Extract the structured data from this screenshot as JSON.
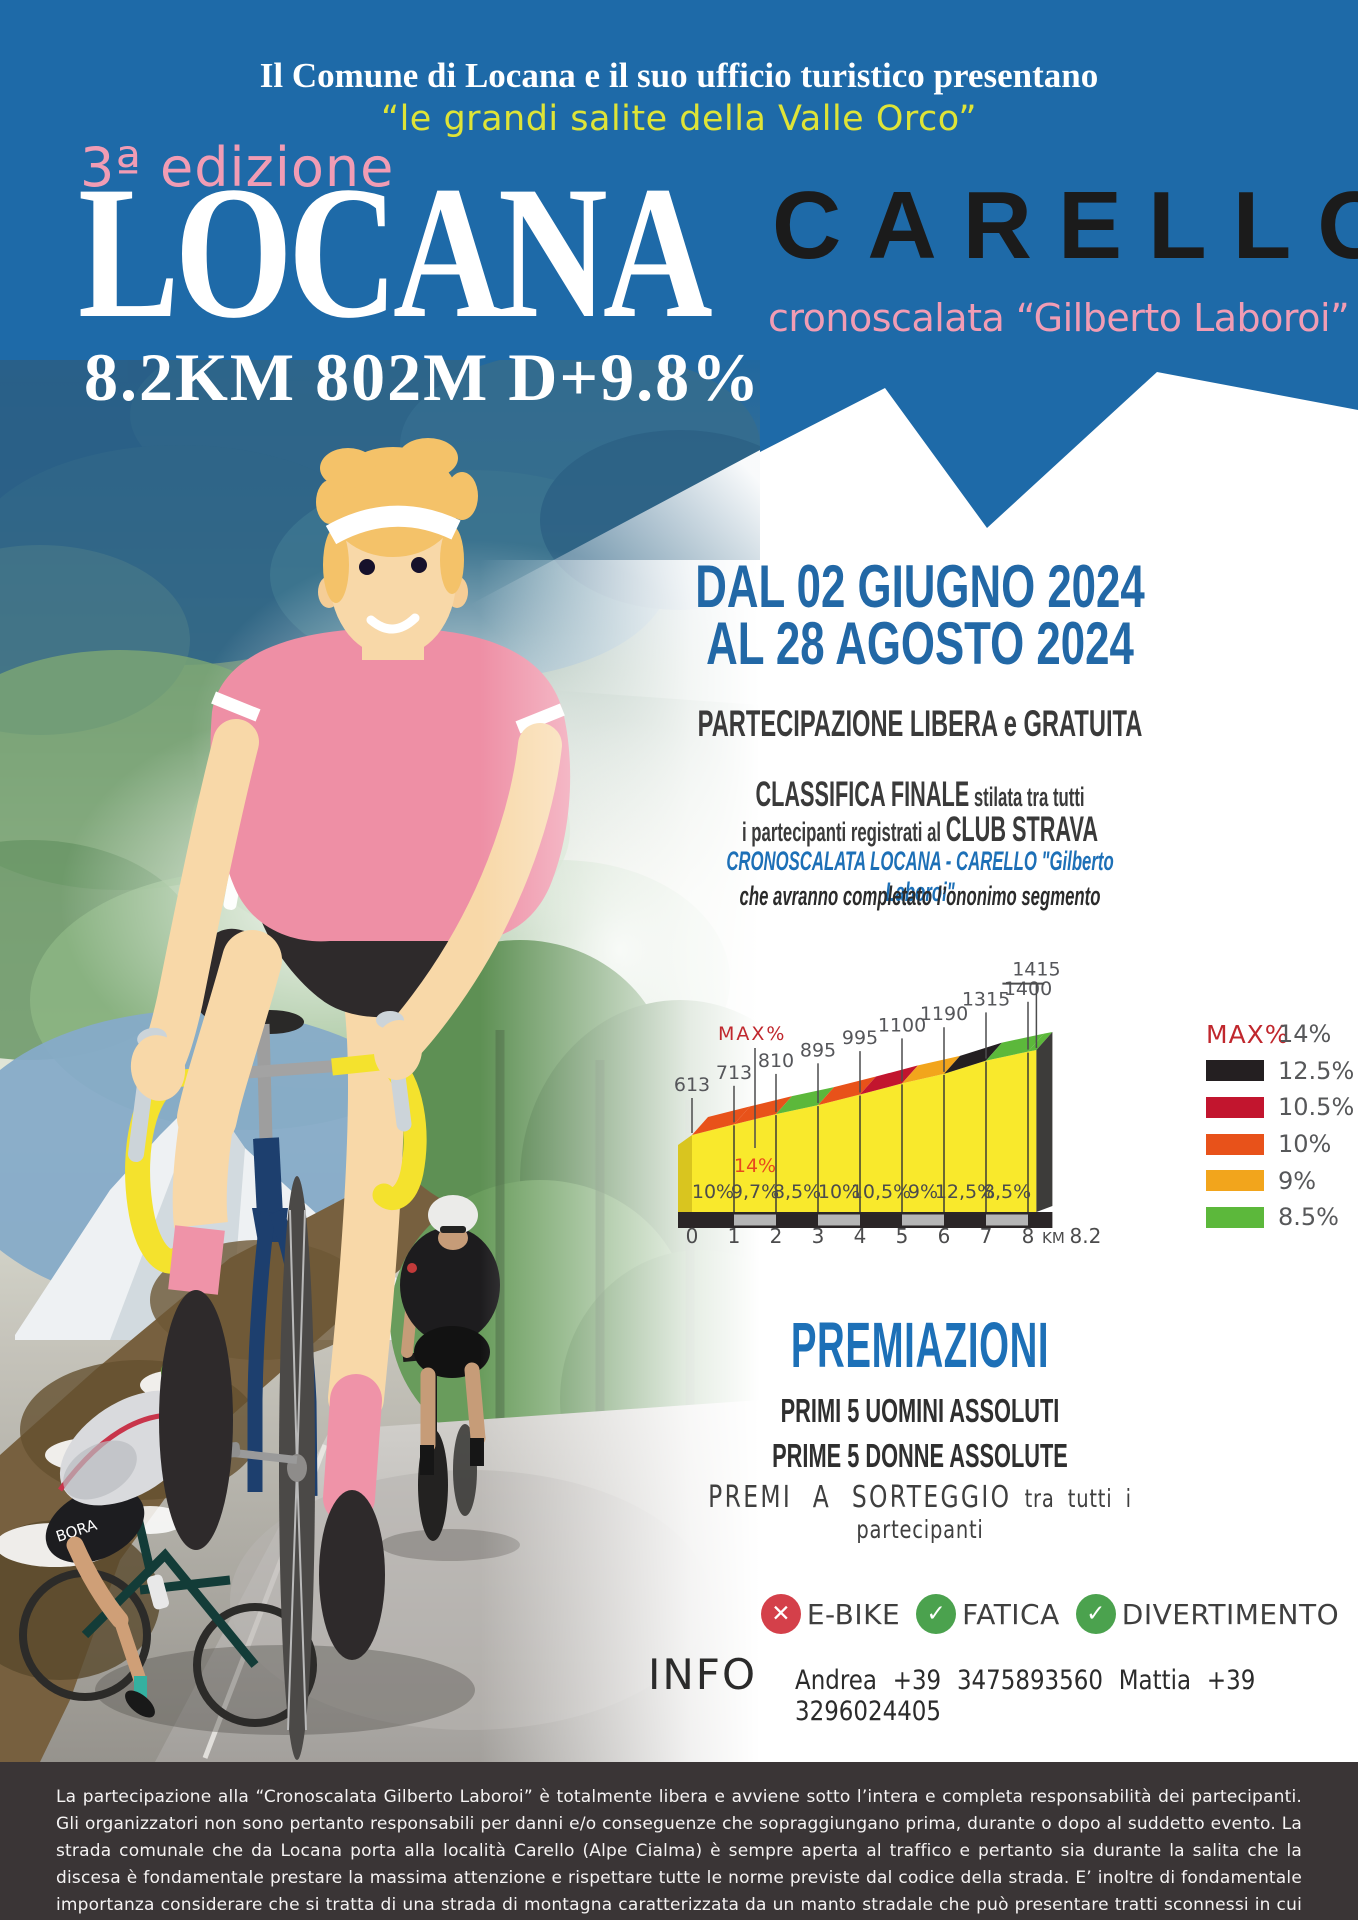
{
  "poster": {
    "colors": {
      "header_blue": "#1e6aa8",
      "accent_yellow": "#dfe437",
      "accent_pink": "#f19cb4",
      "title_black": "#1b1b1b",
      "date_blue": "#2268a6",
      "link_blue": "#1d70b7",
      "badge_red": "#d4404a",
      "badge_green": "#4ba24e",
      "footer_bg": "#3a3536"
    },
    "header": {
      "presenter_line": "Il Comune di Locana e il suo ufficio turistico presentano",
      "series_line": "“le grandi salite della Valle Orco”",
      "edition": "3ª edizione",
      "title_main": "LOCANA",
      "title_secondary": "CARELLO",
      "subtitle": "cronoscalata “Gilberto Laboroi”",
      "stats_line": "8.2KM 802M D+9.8%"
    },
    "event": {
      "date_line1": "DAL 02 GIUGNO 2024",
      "date_line2": "AL 28 AGOSTO 2024",
      "participation": "PARTECIPAZIONE LIBERA e GRATUITA",
      "ranking_line1_strong": "CLASSIFICA FINALE",
      "ranking_line1_rest": " stilata tra tutti",
      "ranking_line2_pre": "i partecipanti registrati al ",
      "ranking_line2_strong": "CLUB STRAVA",
      "ranking_segment": "CRONOSCALATA LOCANA - CARELLO \"Gilberto Laboroi\"",
      "ranking_note": "che avranno completato l’ononimo segmento"
    },
    "premiazioni": {
      "title": "PREMIAZIONI",
      "line1": "PRIMI 5 UOMINI ASSOLUTI",
      "line2": "PRIME 5 DONNE ASSOLUTE",
      "line3_strong": "PREMI A SORTEGGIO",
      "line3_rest": " tra tutti i partecipanti"
    },
    "badges": [
      {
        "icon": "cross-icon",
        "glyph": "✕",
        "label": "E-BIKE",
        "color": "#d4404a"
      },
      {
        "icon": "check-icon",
        "glyph": "✓",
        "label": "FATICA",
        "color": "#4ba24e"
      },
      {
        "icon": "check-icon",
        "glyph": "✓",
        "label": "DIVERTIMENTO",
        "color": "#4ba24e"
      }
    ],
    "info": {
      "label": "INFO",
      "contacts": "Andrea +39 3475893560 Mattia +39 3296024405"
    },
    "disclaimer": "La partecipazione alla “Cronoscalata Gilberto Laboroi” è totalmente libera e avviene sotto l’intera e completa responsabilità dei partecipanti. Gli organizzatori non sono pertanto responsabili per danni e/o conseguenze che sopraggiungano prima, durante o dopo al suddetto evento. La strada comunale che da Locana porta alla località Carello (Alpe Cialma) è sempre aperta al traffico e pertanto sia durante la salita che la discesa è fondamentale prestare la massima attenzione e rispettare tutte le norme previste dal codice della strada. E’ inoltre di fondamentale importanza considerare che si tratta di una strada di montagna caratterizzata da un manto stradale che può presentare tratti sconnessi in cui sarà cura e responsabilità di ogni partecipante procedere con la massima cautela e prudenza, soprattutto durante la discesa."
  },
  "chart_data": {
    "type": "area",
    "xlabel": "KM",
    "x": [
      0,
      1,
      2,
      3,
      4,
      5,
      6,
      7,
      8,
      8.2
    ],
    "altitudes_m": [
      613,
      713,
      810,
      895,
      995,
      1100,
      1190,
      1315,
      1400,
      1415
    ],
    "x_ticks": [
      "0",
      "1",
      "2",
      "3",
      "4",
      "5",
      "6",
      "7",
      "8"
    ],
    "x_end_label": "8.2",
    "segments": [
      {
        "km_from": 0,
        "km_to": 1,
        "gradient": "10%",
        "color": "#e8521a"
      },
      {
        "km_from": 1,
        "km_to": 2,
        "gradient": "9,7%",
        "color": "#e8521a"
      },
      {
        "km_from": 2,
        "km_to": 3,
        "gradient": "8,5%",
        "color": "#5cb83b"
      },
      {
        "km_from": 3,
        "km_to": 4,
        "gradient": "10%",
        "color": "#e8521a"
      },
      {
        "km_from": 4,
        "km_to": 5,
        "gradient": "10,5%",
        "color": "#c2152e"
      },
      {
        "km_from": 5,
        "km_to": 6,
        "gradient": "9%",
        "color": "#f2a51c"
      },
      {
        "km_from": 6,
        "km_to": 7,
        "gradient": "12,5%",
        "color": "#241f21"
      },
      {
        "km_from": 7,
        "km_to": 8,
        "gradient": "8,5%",
        "color": "#5cb83b"
      },
      {
        "km_from": 8,
        "km_to": 8.2,
        "gradient": "",
        "color": "#5cb83b"
      }
    ],
    "max_gradient": {
      "label": "MAX%",
      "value": "14%",
      "at_km": 1.5
    },
    "legend": [
      {
        "text": "MAX%",
        "value": "14%",
        "swatch": null
      },
      {
        "value": "12.5%",
        "swatch": "#241f21"
      },
      {
        "value": "10.5%",
        "swatch": "#c2152e"
      },
      {
        "value": "10%",
        "swatch": "#e8521a"
      },
      {
        "value": "9%",
        "swatch": "#f2a51c"
      },
      {
        "value": "8.5%",
        "swatch": "#5cb83b"
      }
    ],
    "body_color": "#f9e92c",
    "base_color": "#2b2627",
    "base_alt_color": "#b5b5b5"
  }
}
